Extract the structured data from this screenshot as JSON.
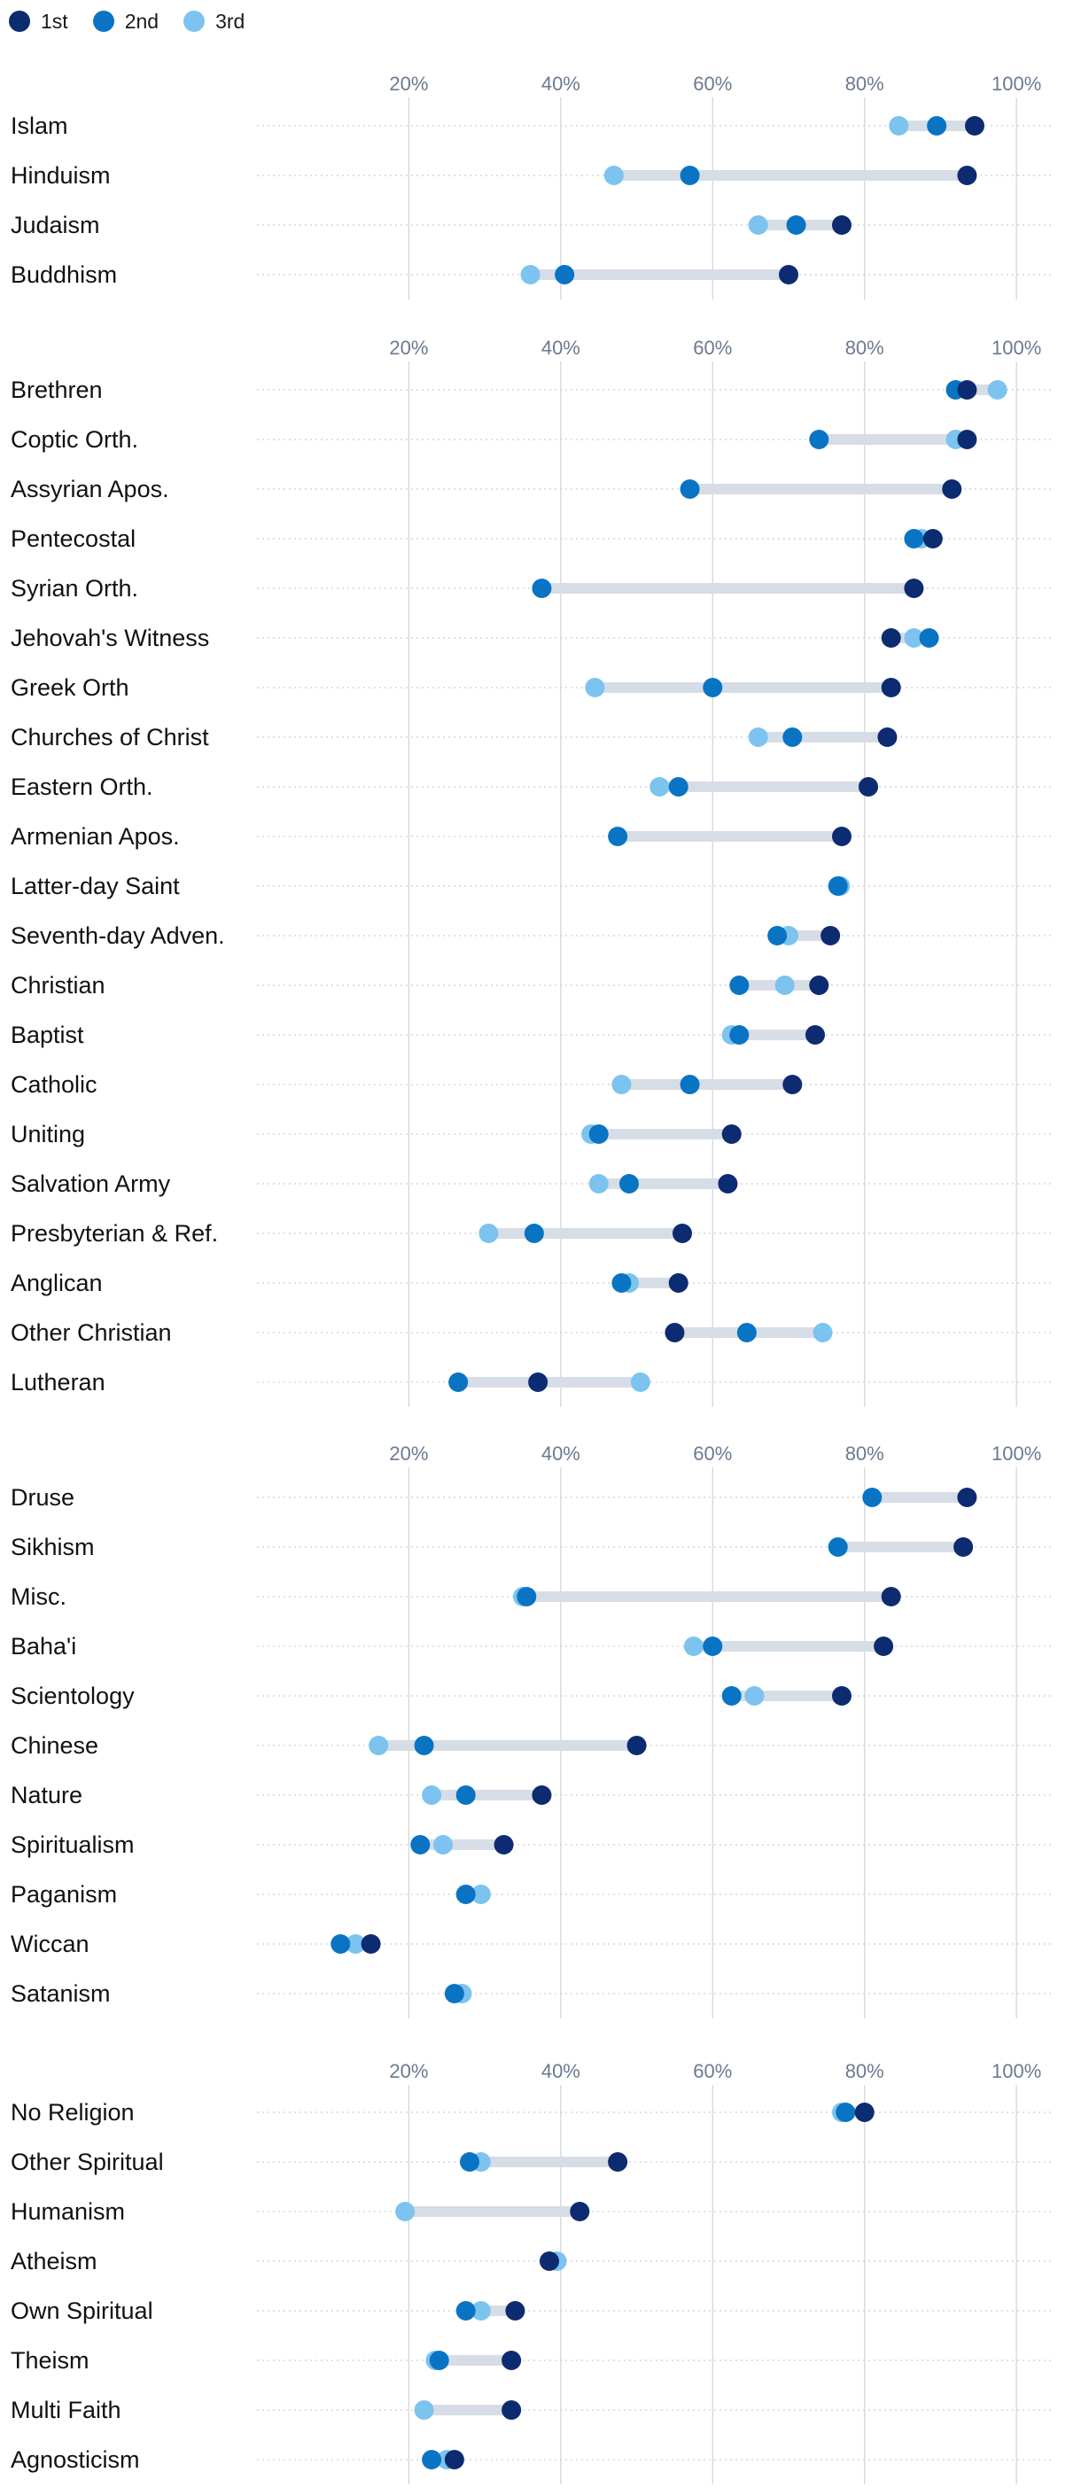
{
  "legend": [
    {
      "label": "1st",
      "color": "#0d2b70"
    },
    {
      "label": "2nd",
      "color": "#0a74c4"
    },
    {
      "label": "3rd",
      "color": "#7cc3ef"
    }
  ],
  "colors": {
    "line": "#d7dde6",
    "grid": "#cfd3d9",
    "tick": "#6b7a90",
    "label": "#111111"
  },
  "chart_data": {
    "type": "dot-range",
    "xlim": [
      0,
      105
    ],
    "x_ticks": [
      "20%",
      "40%",
      "60%",
      "80%",
      "100%"
    ],
    "x_tick_values": [
      20,
      40,
      60,
      80,
      100
    ],
    "series": [
      "1st",
      "2nd",
      "3rd"
    ],
    "groups": [
      {
        "rows": [
          {
            "label": "Islam",
            "v": [
              94.5,
              89.5,
              84.5
            ]
          },
          {
            "label": "Hinduism",
            "v": [
              93.5,
              57,
              47
            ]
          },
          {
            "label": "Judaism",
            "v": [
              77,
              71,
              66
            ]
          },
          {
            "label": "Buddhism",
            "v": [
              70,
              40.5,
              36
            ]
          }
        ]
      },
      {
        "rows": [
          {
            "label": "Brethren",
            "v": [
              93.5,
              92,
              97.5
            ]
          },
          {
            "label": "Coptic Orth.",
            "v": [
              93.5,
              74,
              92
            ]
          },
          {
            "label": "Assyrian Apos.",
            "v": [
              91.5,
              57,
              null
            ]
          },
          {
            "label": "Pentecostal",
            "v": [
              89,
              86.5,
              87.5
            ]
          },
          {
            "label": "Syrian Orth.",
            "v": [
              86.5,
              37.5,
              null
            ]
          },
          {
            "label": "Jehovah's Witness",
            "v": [
              83.5,
              88.5,
              86.5
            ]
          },
          {
            "label": "Greek Orth",
            "v": [
              83.5,
              60,
              44.5
            ]
          },
          {
            "label": "Churches of Christ",
            "v": [
              83,
              70.5,
              66
            ]
          },
          {
            "label": "Eastern Orth.",
            "v": [
              80.5,
              55.5,
              53
            ]
          },
          {
            "label": "Armenian Apos.",
            "v": [
              77,
              47.5,
              null
            ]
          },
          {
            "label": "Latter-day Saint",
            "v": [
              null,
              76.5,
              76.8
            ]
          },
          {
            "label": "Seventh-day Adven.",
            "v": [
              75.5,
              68.5,
              70
            ]
          },
          {
            "label": "Christian",
            "v": [
              74,
              63.5,
              69.5
            ]
          },
          {
            "label": "Baptist",
            "v": [
              73.5,
              63.5,
              62.5
            ]
          },
          {
            "label": "Catholic",
            "v": [
              70.5,
              57,
              48
            ]
          },
          {
            "label": "Uniting",
            "v": [
              62.5,
              45,
              44
            ]
          },
          {
            "label": "Salvation Army",
            "v": [
              62,
              49,
              45
            ]
          },
          {
            "label": "Presbyterian & Ref.",
            "v": [
              56,
              36.5,
              30.5
            ]
          },
          {
            "label": "Anglican",
            "v": [
              55.5,
              48,
              49
            ]
          },
          {
            "label": "Other Christian",
            "v": [
              55,
              64.5,
              74.5
            ]
          },
          {
            "label": "Lutheran",
            "v": [
              37,
              26.5,
              50.5
            ]
          }
        ]
      },
      {
        "rows": [
          {
            "label": "Druse",
            "v": [
              93.5,
              81,
              null
            ]
          },
          {
            "label": "Sikhism",
            "v": [
              93,
              76.5,
              null
            ]
          },
          {
            "label": "Misc.",
            "v": [
              83.5,
              35.5,
              35
            ]
          },
          {
            "label": "Baha'i",
            "v": [
              82.5,
              60,
              57.5
            ]
          },
          {
            "label": "Scientology",
            "v": [
              77,
              62.5,
              65.5
            ]
          },
          {
            "label": "Chinese",
            "v": [
              50,
              22,
              16
            ]
          },
          {
            "label": "Nature",
            "v": [
              37.5,
              27.5,
              23
            ]
          },
          {
            "label": "Spiritualism",
            "v": [
              32.5,
              21.5,
              24.5
            ]
          },
          {
            "label": "Paganism",
            "v": [
              null,
              27.5,
              29.5
            ]
          },
          {
            "label": "Wiccan",
            "v": [
              15,
              11,
              13
            ]
          },
          {
            "label": "Satanism",
            "v": [
              null,
              26,
              27
            ]
          }
        ]
      },
      {
        "rows": [
          {
            "label": "No Religion",
            "v": [
              80,
              77.5,
              77
            ]
          },
          {
            "label": "Other Spiritual",
            "v": [
              47.5,
              28,
              29.5
            ]
          },
          {
            "label": "Humanism",
            "v": [
              42.5,
              null,
              19.5
            ]
          },
          {
            "label": "Atheism",
            "v": [
              38.5,
              null,
              39.5
            ]
          },
          {
            "label": "Own Spiritual",
            "v": [
              34,
              27.5,
              29.5
            ]
          },
          {
            "label": "Theism",
            "v": [
              33.5,
              24,
              23.5
            ]
          },
          {
            "label": "Multi Faith",
            "v": [
              33.5,
              null,
              22
            ]
          },
          {
            "label": "Agnosticism",
            "v": [
              26,
              23,
              25
            ]
          }
        ]
      }
    ]
  }
}
